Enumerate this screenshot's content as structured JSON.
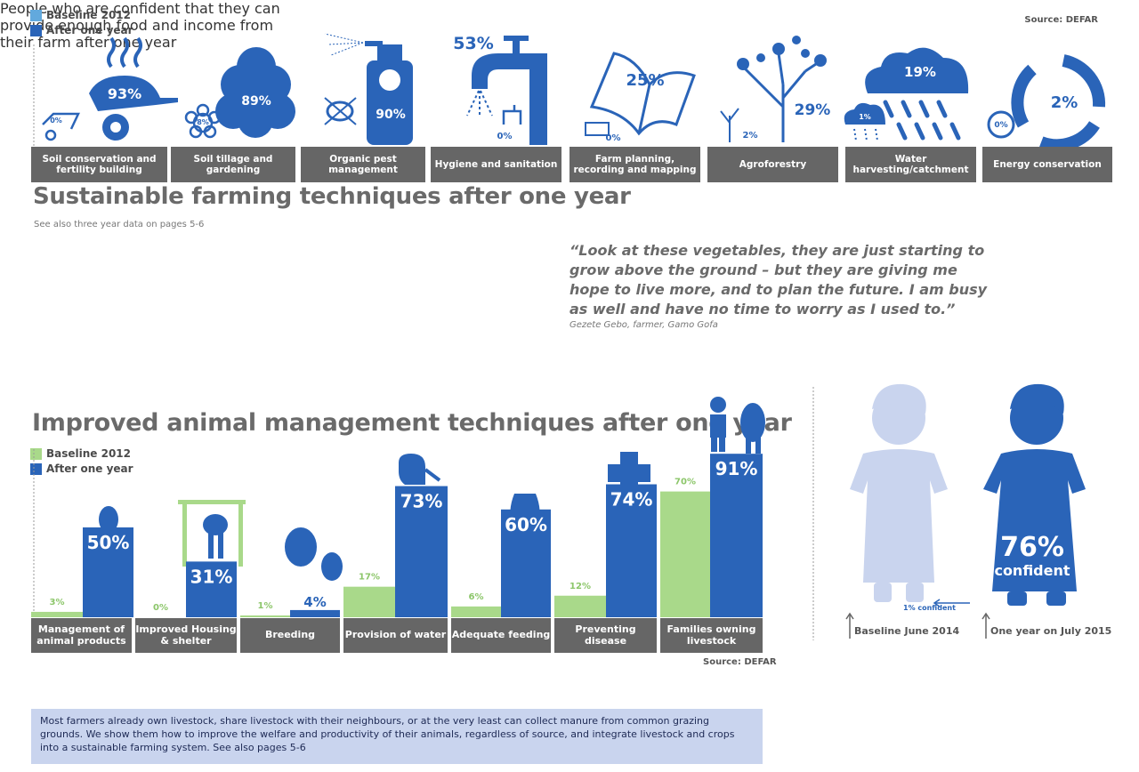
{
  "top": {
    "legend": [
      {
        "label": "Baseline 2012",
        "color": "#62a9dd"
      },
      {
        "label": "After one year",
        "color": "#2a64b8"
      }
    ],
    "source": "Source: DEFAR",
    "title": "Sustainable farming techniques after one year",
    "subtitle": "See also three year data on pages 5-6"
  },
  "quote": {
    "text": "“Look at these vegetables, they are just starting to grow above the ground – but they are giving me hope to live more, and to plan the future. I am busy as well and have no time to worry as I used to.”",
    "attribution": "Gezete Gebo, farmer, Gamo Gofa"
  },
  "animal": {
    "title": "Improved animal management techniques after one year",
    "legend": [
      {
        "label": "Baseline 2012",
        "color": "#a9d98a"
      },
      {
        "label": "After one year",
        "color": "#2a64b8"
      }
    ],
    "source": "Source: DEFAR",
    "note": "Most farmers already own livestock, share livestock with their neighbours, or at the very least can collect manure from common grazing grounds. We show them how to improve the welfare and productivity of their animals, regardless of source, and integrate livestock and crops into a sustainable farming system. See also pages 5-6"
  },
  "confidence": {
    "baseline_label": "Baseline June 2014",
    "after_label": "One year on July 2015",
    "baseline_value_label": "1% confident",
    "after_value_label": "76%",
    "after_value_sub": "confident",
    "caption": "People who are confident that\nthey can provide enough food\nand income from their farm\nafter one year",
    "colors": {
      "baseline": "#c9d4ee",
      "after": "#2a64b8"
    }
  },
  "chart_data": [
    {
      "type": "bar",
      "title": "Sustainable farming techniques after one year",
      "categories": [
        "Soil conservation and fertility building",
        "Soil tillage and gardening",
        "Organic pest management",
        "Hygiene and sanitation",
        "Farm planning, recording and mapping",
        "Agroforestry",
        "Water harvesting/catchment",
        "Energy conservation"
      ],
      "series": [
        {
          "name": "Baseline 2012",
          "values": [
            0,
            8,
            null,
            0,
            0,
            2,
            1,
            0
          ]
        },
        {
          "name": "After one year",
          "values": [
            93,
            89,
            90,
            53,
            25,
            29,
            19,
            2
          ]
        }
      ],
      "labels": {
        "baseline": [
          "0%",
          "8%",
          "",
          "0%",
          "0%",
          "2%",
          "1%",
          "0%"
        ],
        "after": [
          "93%",
          "89%",
          "90%",
          "53%",
          "25%",
          "29%",
          "19%",
          "2%"
        ]
      }
    },
    {
      "type": "bar",
      "title": "Improved animal management techniques after one year",
      "categories": [
        "Management of animal products",
        "Improved Housing & shelter",
        "Breeding",
        "Provision of water",
        "Adequate feeding",
        "Preventing disease",
        "Families owning livestock"
      ],
      "series": [
        {
          "name": "Baseline 2012",
          "values": [
            3,
            0,
            1,
            17,
            6,
            12,
            70
          ]
        },
        {
          "name": "After one year",
          "values": [
            50,
            31,
            4,
            73,
            60,
            74,
            91
          ]
        }
      ],
      "ylim": [
        0,
        100
      ]
    }
  ]
}
